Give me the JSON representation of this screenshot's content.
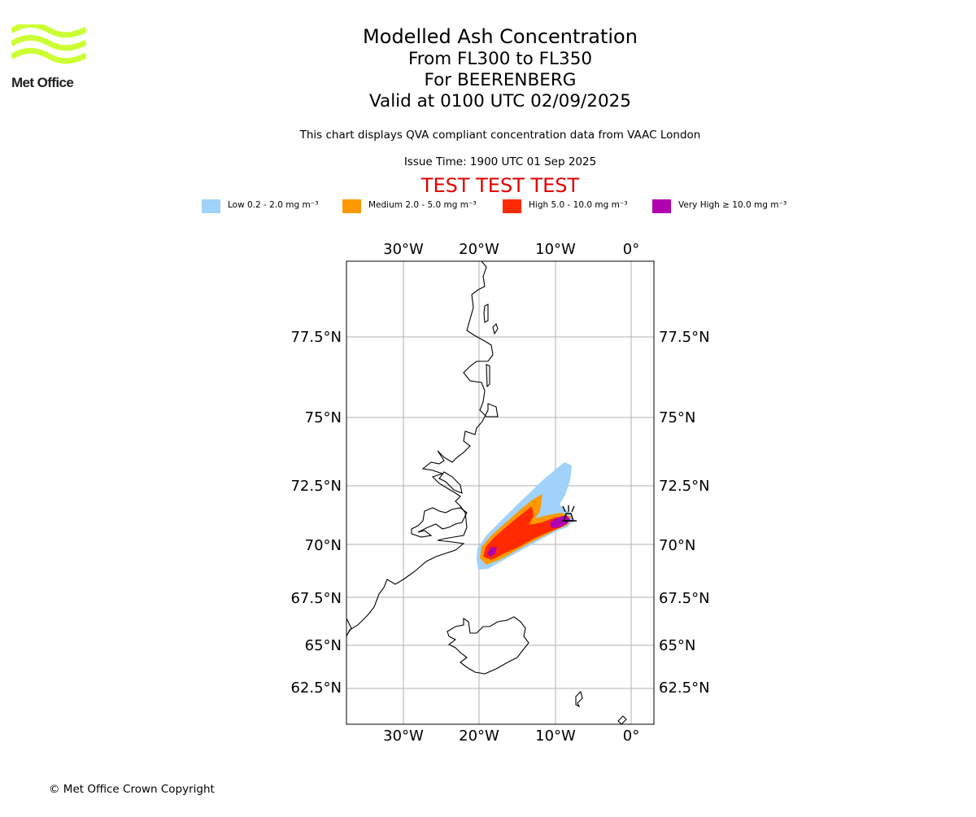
{
  "header": {
    "logo_name": "Met Office",
    "title": "Modelled Ash Concentration",
    "levels_line": "From FL300 to FL350",
    "volcano_line": "For BEERENBERG",
    "valid_line": "Valid at 0100 UTC 02/09/2025",
    "compliance_note": "This chart displays QVA compliant concentration data from VAAC London",
    "issue_time": "Issue Time: 1900 UTC 01 Sep 2025",
    "test_banner": "TEST TEST TEST",
    "logo_color": "#ccff33",
    "test_color": "#e00000"
  },
  "legend": [
    {
      "label": "Low 0.2 - 2.0 mg m⁻³",
      "color": "#a0d2fa"
    },
    {
      "label": "Medium 2.0 - 5.0 mg m⁻³",
      "color": "#ff9900"
    },
    {
      "label": "High 5.0 - 10.0 mg m⁻³",
      "color": "#ff2a00"
    },
    {
      "label": "Very High ≥ 10.0 mg m⁻³",
      "color": "#b000b0"
    }
  ],
  "map": {
    "lon_ticks": [
      "30°W",
      "20°W",
      "10°W",
      "0°"
    ],
    "lat_ticks": [
      "77.5°N",
      "75°N",
      "72.5°N",
      "70°N",
      "67.5°N",
      "65°N",
      "62.5°N"
    ],
    "volcano_marker": "volcano-icon"
  },
  "footer": {
    "copyright": "© Met Office Crown Copyright"
  }
}
